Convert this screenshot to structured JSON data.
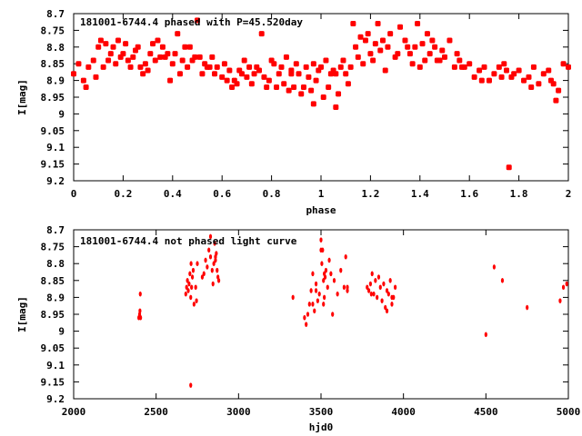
{
  "chart_data": [
    {
      "type": "scatter",
      "title": "181001-6744.4 phased with P=45.520day",
      "xlabel": "phase",
      "ylabel": "I[mag]",
      "xlim": [
        0,
        2
      ],
      "ylim": [
        9.2,
        8.7
      ],
      "y_inverted": true,
      "x_ticks": [
        "0",
        "0.2",
        "0.4",
        "0.6",
        "0.8",
        "1",
        "1.2",
        "1.4",
        "1.6",
        "1.8",
        "2"
      ],
      "y_ticks": [
        "8.7",
        "8.75",
        "8.8",
        "8.85",
        "8.9",
        "8.95",
        "9",
        "9.05",
        "9.1",
        "9.15",
        "9.2"
      ],
      "marker_color": "#ff0000",
      "series": [
        {
          "x": [
            0.0,
            0.02,
            0.04,
            0.06,
            0.08,
            0.09,
            0.1,
            0.11,
            0.12,
            0.14,
            0.15,
            0.16,
            0.17,
            0.18,
            0.19,
            0.2,
            0.21,
            0.22,
            0.23,
            0.24,
            0.25,
            0.26,
            0.27,
            0.29,
            0.3,
            0.31,
            0.32,
            0.33,
            0.34,
            0.36,
            0.37,
            0.38,
            0.39,
            0.4,
            0.41,
            0.42,
            0.43,
            0.44,
            0.45,
            0.46,
            0.48,
            0.49,
            0.5,
            0.51,
            0.52,
            0.53,
            0.55,
            0.56,
            0.57,
            0.58,
            0.6,
            0.61,
            0.62,
            0.63,
            0.65,
            0.66,
            0.67,
            0.68,
            0.7,
            0.71,
            0.72,
            0.73,
            0.75,
            0.76,
            0.77,
            0.78,
            0.79,
            0.8,
            0.81,
            0.82,
            0.83,
            0.84,
            0.85,
            0.86,
            0.87,
            0.88,
            0.89,
            0.9,
            0.91,
            0.92,
            0.93,
            0.94,
            0.95,
            0.96,
            0.97,
            0.98,
            0.99,
            1.0,
            1.01,
            1.02,
            1.03,
            1.04,
            1.05,
            1.06,
            1.07,
            1.08,
            1.09,
            1.1,
            1.11,
            1.12,
            1.13,
            1.14,
            1.15,
            1.16,
            1.17,
            1.18,
            1.19,
            1.2,
            1.21,
            1.22,
            1.23,
            1.24,
            1.25,
            1.27,
            1.28,
            1.3,
            1.32,
            1.34,
            1.35,
            1.36,
            1.37,
            1.38,
            1.39,
            1.4,
            1.41,
            1.42,
            1.43,
            1.44,
            1.45,
            1.46,
            1.48,
            1.49,
            1.5,
            1.52,
            1.54,
            1.55,
            1.56,
            1.58,
            1.6,
            1.62,
            1.64,
            1.66,
            1.68,
            1.7,
            1.72,
            1.74,
            1.75,
            1.76,
            1.77,
            1.78,
            1.8,
            1.82,
            1.84,
            1.86,
            1.88,
            1.9,
            1.92,
            1.93,
            1.94,
            1.96,
            1.98,
            2.0,
            0.05,
            0.13,
            0.28,
            0.35,
            0.47,
            0.54,
            0.64,
            0.69,
            0.74,
            0.88,
            0.97,
            1.06,
            1.26,
            1.31,
            1.47,
            1.57,
            1.65,
            1.73,
            1.85,
            1.95
          ],
          "y": [
            8.88,
            8.85,
            8.9,
            8.86,
            8.84,
            8.89,
            8.8,
            8.78,
            8.86,
            8.84,
            8.82,
            8.8,
            8.85,
            8.78,
            8.83,
            8.82,
            8.79,
            8.84,
            8.86,
            8.83,
            8.81,
            8.8,
            8.86,
            8.85,
            8.87,
            8.82,
            8.79,
            8.84,
            8.78,
            8.8,
            8.83,
            8.82,
            8.9,
            8.85,
            8.82,
            8.76,
            8.88,
            8.84,
            8.8,
            8.86,
            8.84,
            8.83,
            8.72,
            8.83,
            8.88,
            8.85,
            8.86,
            8.83,
            8.88,
            8.86,
            8.89,
            8.85,
            8.9,
            8.87,
            8.9,
            8.91,
            8.87,
            8.88,
            8.89,
            8.86,
            8.91,
            8.88,
            8.87,
            8.76,
            8.89,
            8.92,
            8.9,
            8.84,
            8.85,
            8.92,
            8.88,
            8.86,
            8.91,
            8.83,
            8.93,
            8.87,
            8.92,
            8.85,
            8.88,
            8.94,
            8.92,
            8.86,
            8.89,
            8.93,
            8.85,
            8.9,
            8.87,
            8.86,
            8.95,
            8.84,
            8.92,
            8.88,
            8.87,
            8.88,
            8.94,
            8.86,
            8.84,
            8.88,
            8.91,
            8.86,
            8.73,
            8.8,
            8.83,
            8.77,
            8.85,
            8.78,
            8.76,
            8.82,
            8.84,
            8.79,
            8.73,
            8.81,
            8.78,
            8.8,
            8.76,
            8.83,
            8.74,
            8.78,
            8.8,
            8.82,
            8.85,
            8.8,
            8.73,
            8.86,
            8.79,
            8.84,
            8.76,
            8.82,
            8.78,
            8.8,
            8.84,
            8.81,
            8.83,
            8.78,
            8.86,
            8.82,
            8.84,
            8.86,
            8.85,
            8.89,
            8.87,
            8.86,
            8.9,
            8.88,
            8.86,
            8.85,
            8.87,
            9.16,
            8.89,
            8.88,
            8.87,
            8.9,
            8.89,
            8.86,
            8.91,
            8.88,
            8.87,
            8.9,
            8.91,
            8.93,
            8.85,
            8.86,
            8.92,
            8.79,
            8.88,
            8.83,
            8.8,
            8.86,
            8.92,
            8.84,
            8.86,
            8.88,
            8.97,
            8.98,
            8.87,
            8.82,
            8.84,
            8.86,
            8.9,
            8.89,
            8.92,
            8.96
          ]
        }
      ]
    },
    {
      "type": "scatter",
      "title": "181001-6744.4 not phased light curve",
      "xlabel": "hjd0",
      "ylabel": "I[mag]",
      "xlim": [
        2000,
        5000
      ],
      "ylim": [
        9.2,
        8.7
      ],
      "y_inverted": true,
      "x_ticks": [
        "2000",
        "2500",
        "3000",
        "3500",
        "4000",
        "4500",
        "5000"
      ],
      "y_ticks": [
        "8.7",
        "8.75",
        "8.8",
        "8.85",
        "8.9",
        "8.95",
        "9",
        "9.05",
        "9.1",
        "9.15",
        "9.2"
      ],
      "marker_color": "#ff0000",
      "series": [
        {
          "x": [
            2395,
            2400,
            2402,
            2404,
            2406,
            2680,
            2685,
            2690,
            2695,
            2700,
            2705,
            2710,
            2712,
            2715,
            2720,
            2725,
            2730,
            2740,
            2745,
            2750,
            2780,
            2790,
            2800,
            2810,
            2820,
            2830,
            2840,
            2845,
            2850,
            2855,
            2860,
            2865,
            2870,
            2875,
            2880,
            2710,
            3330,
            3400,
            3410,
            3420,
            3430,
            3440,
            3450,
            3460,
            3470,
            3480,
            3490,
            3500,
            3505,
            3510,
            3515,
            3520,
            3525,
            3530,
            3540,
            3550,
            3560,
            3570,
            3580,
            3600,
            3620,
            3640,
            3650,
            3660,
            3780,
            3790,
            3800,
            3810,
            3820,
            3830,
            3840,
            3850,
            3860,
            3870,
            3880,
            3890,
            3900,
            3910,
            3920,
            3930,
            3940,
            3950,
            4500,
            4550,
            4600,
            4750,
            4950,
            4970,
            4990,
            3500,
            3520,
            3515,
            3660,
            3805,
            3900,
            2830,
            2860,
            3470,
            3450,
            3930
          ],
          "y": [
            8.96,
            8.95,
            8.94,
            8.89,
            8.96,
            8.89,
            8.87,
            8.85,
            8.88,
            8.86,
            8.83,
            8.9,
            8.8,
            8.87,
            8.84,
            8.82,
            8.92,
            8.87,
            8.91,
            8.8,
            8.84,
            8.83,
            8.79,
            8.81,
            8.76,
            8.78,
            8.82,
            8.86,
            8.8,
            8.74,
            8.79,
            8.77,
            8.82,
            8.84,
            8.85,
            9.16,
            8.9,
            8.96,
            8.98,
            8.95,
            8.92,
            8.88,
            8.83,
            8.94,
            8.86,
            8.91,
            8.89,
            8.73,
            8.8,
            8.76,
            8.85,
            8.9,
            8.84,
            8.82,
            8.87,
            8.79,
            8.83,
            8.95,
            8.85,
            8.89,
            8.82,
            8.87,
            8.78,
            8.87,
            8.87,
            8.88,
            8.86,
            8.83,
            8.89,
            8.85,
            8.9,
            8.84,
            8.87,
            8.91,
            8.86,
            8.93,
            8.88,
            8.89,
            8.85,
            8.92,
            8.9,
            8.87,
            9.01,
            8.81,
            8.85,
            8.93,
            8.91,
            8.87,
            8.86,
            8.76,
            8.83,
            8.92,
            8.88,
            8.89,
            8.94,
            8.72,
            8.78,
            8.88,
            8.92,
            8.9
          ]
        }
      ]
    }
  ]
}
